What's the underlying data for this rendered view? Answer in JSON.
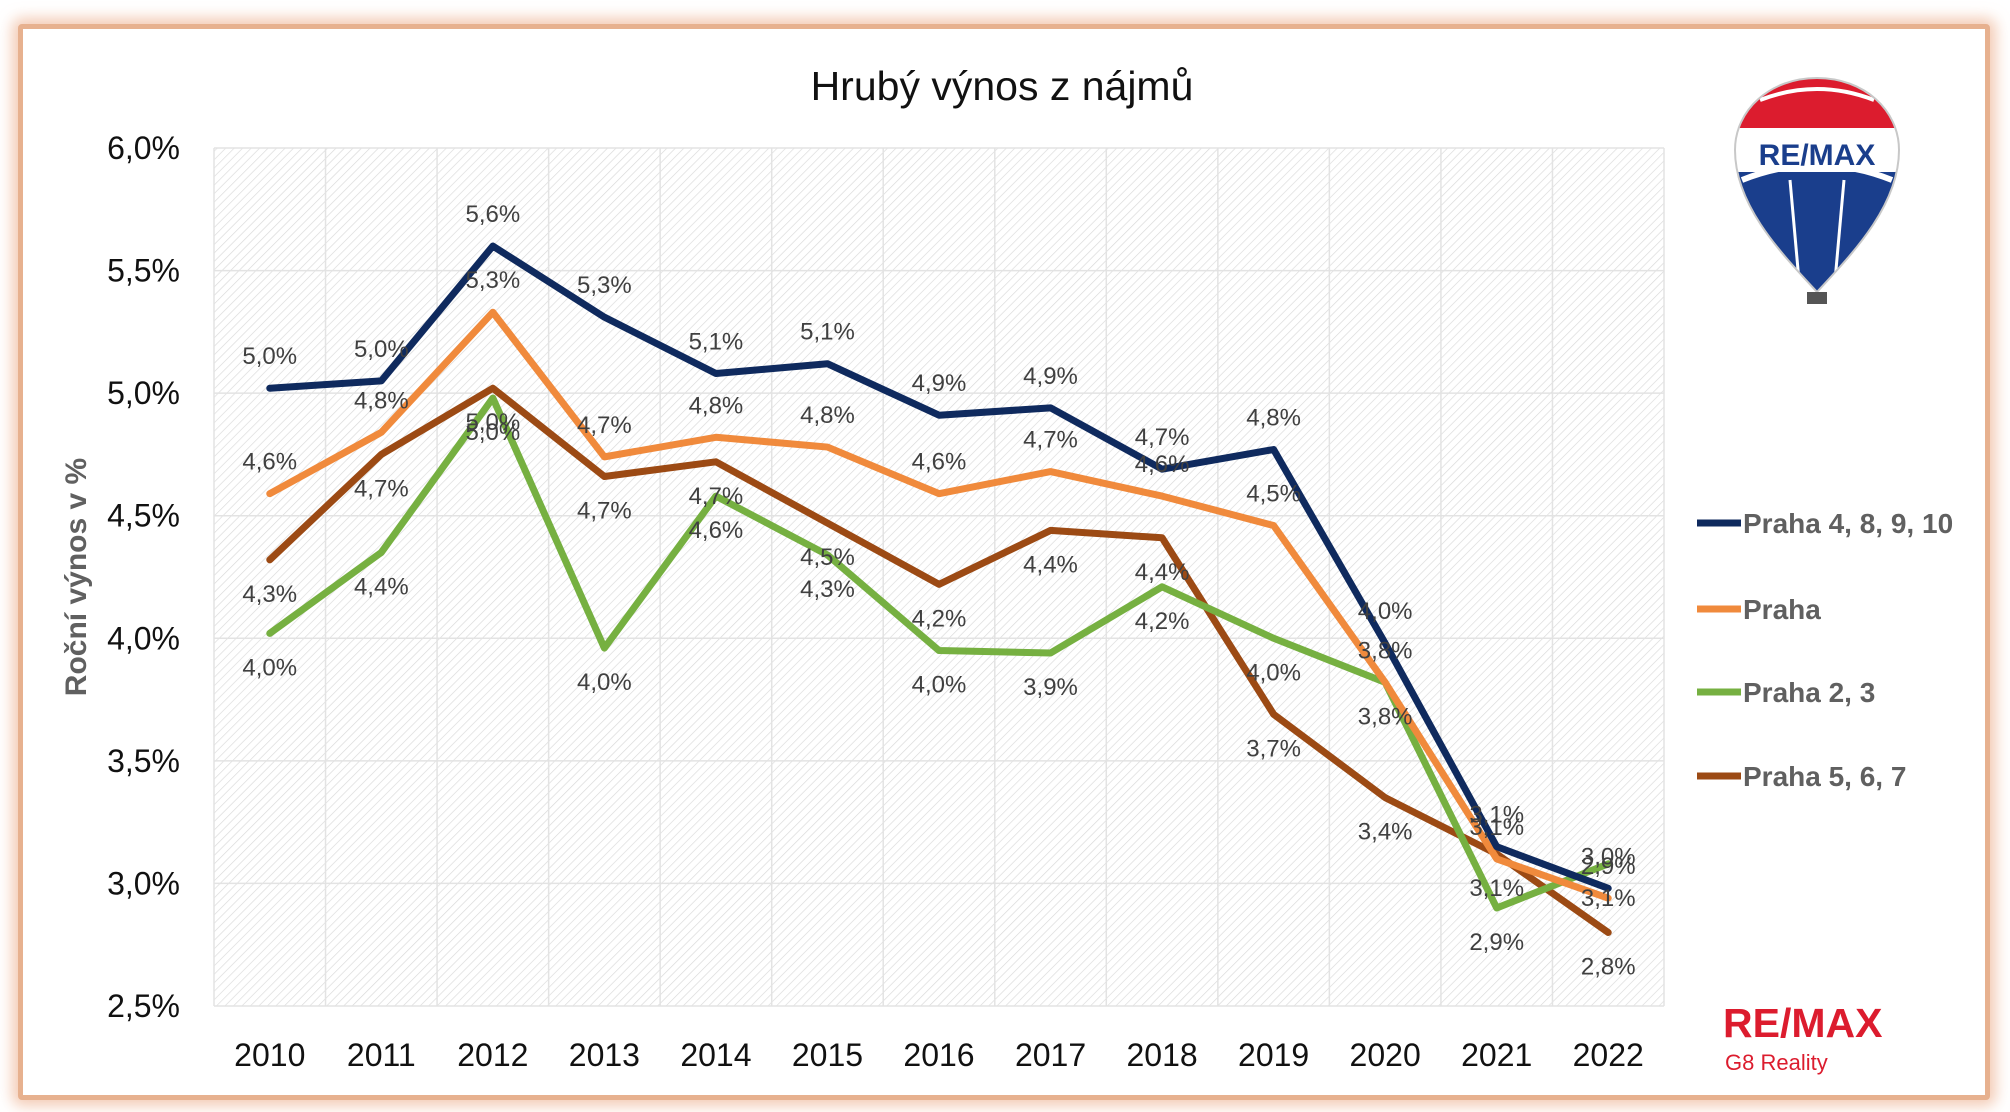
{
  "chart_data": {
    "type": "line",
    "title": "Hrubý výnos z nájmů",
    "xlabel": "",
    "ylabel": "Roční výnos v %",
    "ylim": [
      2.5,
      6.0
    ],
    "yticks": [
      "6,0%",
      "5,5%",
      "5,0%",
      "4,5%",
      "4,0%",
      "3,5%",
      "3,0%",
      "2,5%"
    ],
    "ytick_values": [
      6.0,
      5.5,
      5.0,
      4.5,
      4.0,
      3.5,
      3.0,
      2.5
    ],
    "categories": [
      "2010",
      "2011",
      "2012",
      "2013",
      "2014",
      "2015",
      "2016",
      "2017",
      "2018",
      "2019",
      "2020",
      "2021",
      "2022"
    ],
    "grid": true,
    "legend_position": "right",
    "series": [
      {
        "name": "Praha 4, 8, 9, 10",
        "color": "#0f2a5e",
        "values": [
          5.02,
          5.05,
          5.6,
          5.31,
          5.08,
          5.12,
          4.91,
          4.94,
          4.69,
          4.77,
          3.98,
          3.15,
          2.98
        ],
        "labels": [
          "5,0%",
          "5,0%",
          "5,6%",
          "5,3%",
          "5,1%",
          "5,1%",
          "4,9%",
          "4,9%",
          "4,7%",
          "4,8%",
          "4,0%",
          "3,1%",
          "3,0%"
        ]
      },
      {
        "name": "Praha",
        "color": "#f08a3c",
        "values": [
          4.59,
          4.84,
          5.33,
          4.74,
          4.82,
          4.78,
          4.59,
          4.68,
          4.58,
          4.46,
          3.82,
          3.1,
          2.94
        ],
        "labels": [
          "4,6%",
          "4,8%",
          "5,3%",
          "4,7%",
          "4,8%",
          "4,8%",
          "4,6%",
          "4,7%",
          "4,6%",
          "4,5%",
          "3,8%",
          "3,1%",
          "2,9%"
        ]
      },
      {
        "name": "Praha 2, 3",
        "color": "#76b041",
        "values": [
          4.02,
          4.35,
          4.98,
          3.96,
          4.58,
          4.34,
          3.95,
          3.94,
          4.21,
          4.0,
          3.82,
          2.9,
          3.08
        ],
        "labels": [
          "4,0%",
          "4,4%",
          "5,0%",
          "4,0%",
          "4,6%",
          "4,3%",
          "4,0%",
          "3,9%",
          "4,2%",
          "4,0%",
          "3,8%",
          "2,9%",
          "3,1%"
        ]
      },
      {
        "name": "Praha 5, 6, 7",
        "color": "#9c4a14",
        "values": [
          4.32,
          4.75,
          5.02,
          4.66,
          4.72,
          4.47,
          4.22,
          4.44,
          4.41,
          3.69,
          3.35,
          3.12,
          2.8
        ],
        "labels": [
          "4,3%",
          "4,7%",
          "5,0%",
          "4,7%",
          "4,7%",
          "4,5%",
          "4,2%",
          "4,4%",
          "4,4%",
          "3,7%",
          "3,4%",
          "3,1%",
          "2,8%"
        ]
      }
    ]
  },
  "logo": {
    "balloon_text": "RE/MAX",
    "brand_text": "RE/MAX",
    "office_text": "G8 Reality",
    "red": "#dc1c2e",
    "blue": "#1a3e8c"
  }
}
